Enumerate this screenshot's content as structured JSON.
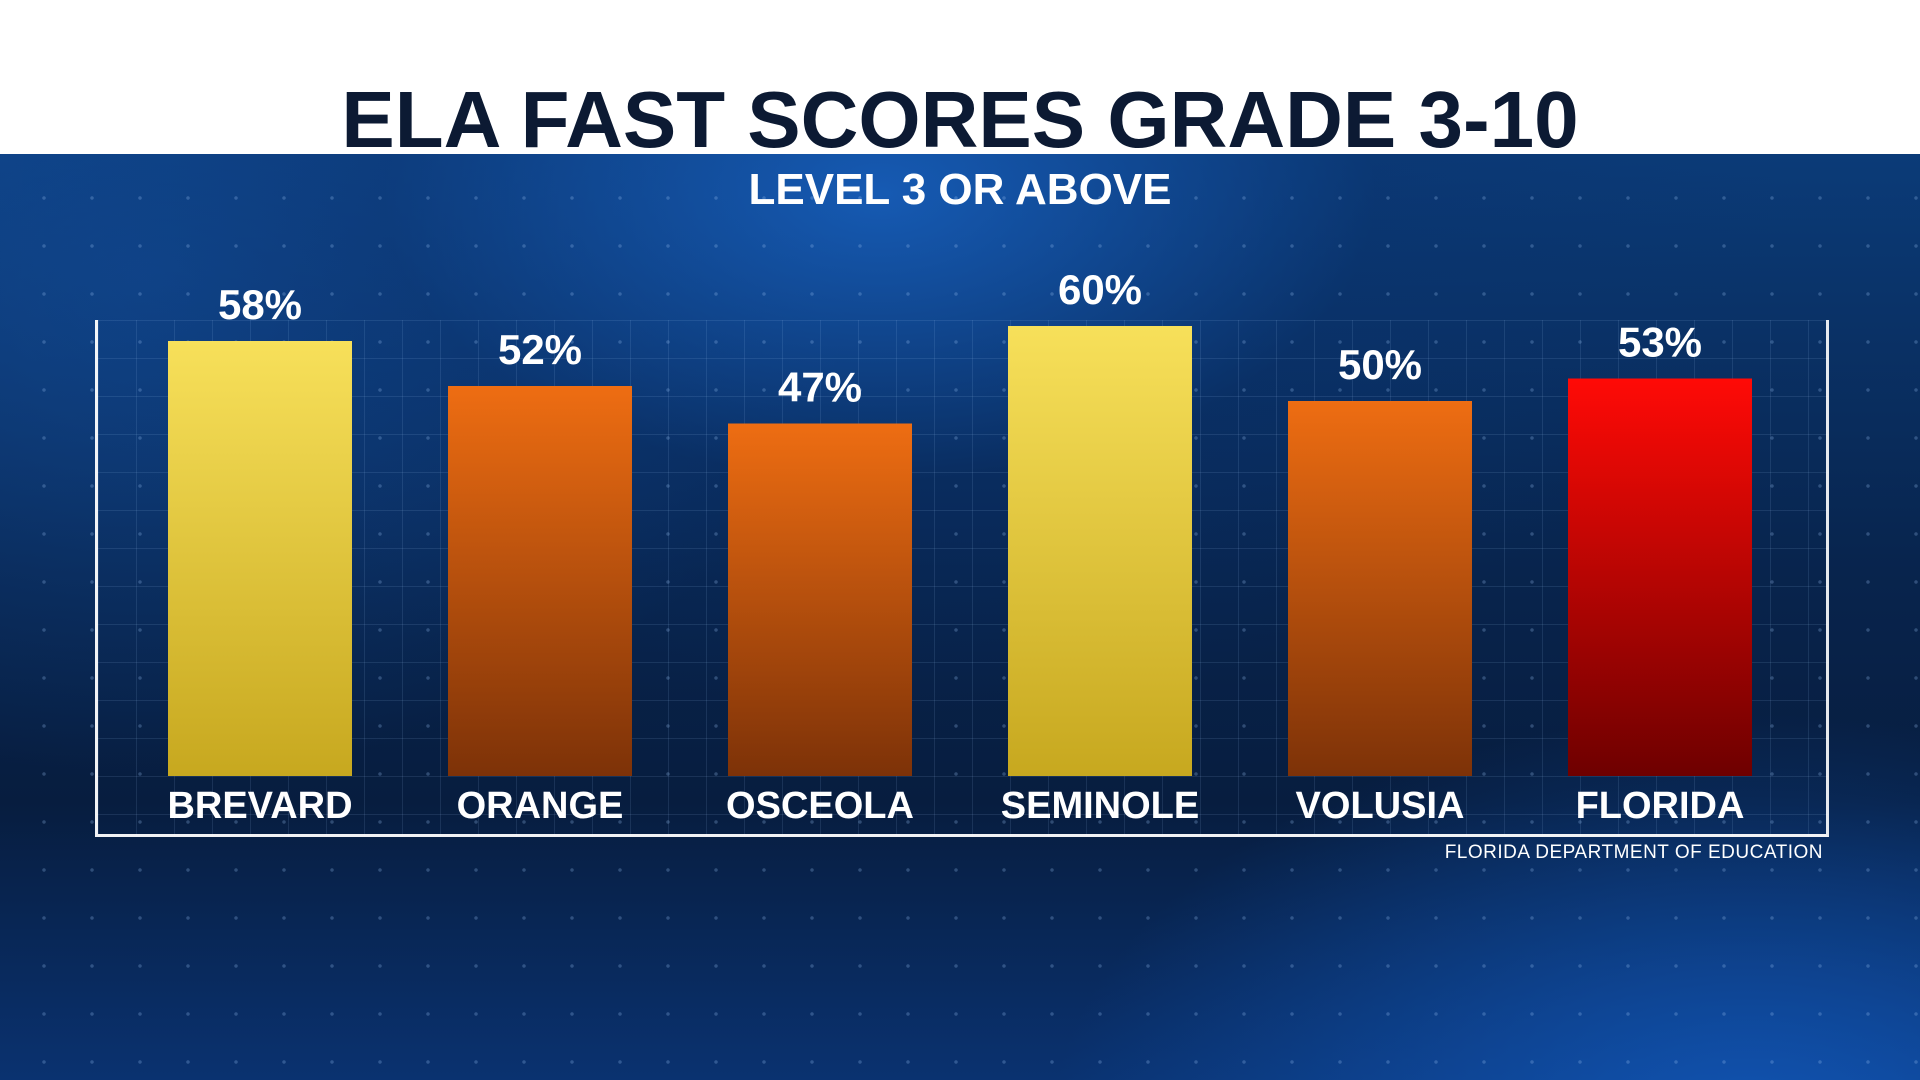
{
  "header": {
    "title": "ELA FAST SCORES GRADE 3-10"
  },
  "chart_data": {
    "type": "bar",
    "title": "ELA FAST SCORES GRADE 3-10",
    "subtitle": "LEVEL 3 OR ABOVE",
    "categories": [
      "BREVARD",
      "ORANGE",
      "OSCEOLA",
      "SEMINOLE",
      "VOLUSIA",
      "FLORIDA"
    ],
    "values": [
      58,
      52,
      47,
      60,
      50,
      53
    ],
    "value_labels": [
      "58%",
      "52%",
      "47%",
      "60%",
      "50%",
      "53%"
    ],
    "ylim": [
      0,
      60
    ],
    "unit": "%",
    "grid": true,
    "bar_colors": [
      {
        "top": "#f7e05a",
        "bottom": "#c7a81f"
      },
      {
        "top": "#ee6d12",
        "bottom": "#7d3208"
      },
      {
        "top": "#ee6d12",
        "bottom": "#7d3208"
      },
      {
        "top": "#f7e05a",
        "bottom": "#c7a81f"
      },
      {
        "top": "#ee6d12",
        "bottom": "#7d3208"
      },
      {
        "top": "#ff0a06",
        "bottom": "#6e0000"
      }
    ]
  },
  "source": "FLORIDA DEPARTMENT OF EDUCATION"
}
